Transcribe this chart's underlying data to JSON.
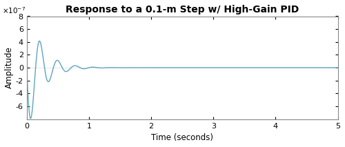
{
  "title": "Response to a 0.1-m Step w/ High-Gain PID",
  "xlabel": "Time (seconds)",
  "ylabel": "Amplitude",
  "xlim": [
    0,
    5
  ],
  "ylim": [
    -8e-07,
    8e-07
  ],
  "yticks": [
    -6e-07,
    -4e-07,
    -2e-07,
    0,
    2e-07,
    4e-07,
    6e-07,
    8e-07
  ],
  "xticks": [
    0,
    1,
    2,
    3,
    4,
    5
  ],
  "line_color": "#5da4bf",
  "line_width": 1.0,
  "axes_bg_color": "#ffffff",
  "fig_bg_color": "#ffffff",
  "title_fontsize": 10,
  "label_fontsize": 8.5,
  "tick_fontsize": 8,
  "zero_line_color": "#c0c0c0",
  "zero_line_style": ":"
}
